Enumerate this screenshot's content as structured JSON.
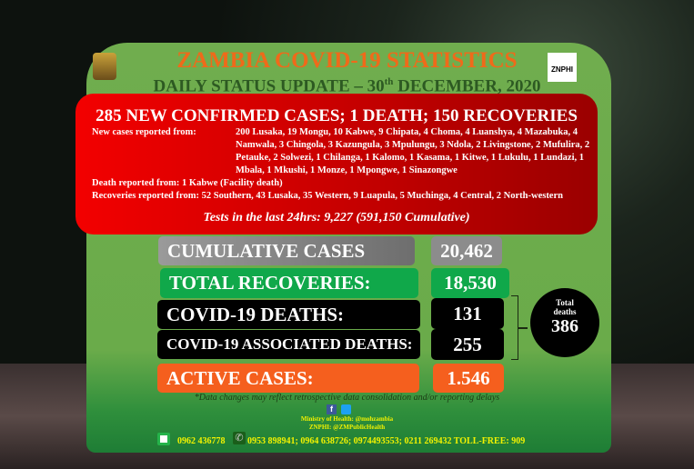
{
  "header": {
    "title": "ZAMBIA COVID-19 STATISTICS",
    "subtitle_pre": "DAILY STATUS UPDATE – 30",
    "subtitle_sup": "th",
    "subtitle_post": " DECEMBER, 2020",
    "logo_right": "ZNPHI"
  },
  "summary": {
    "headline": "285 NEW CONFIRMED CASES; 1 DEATH; 150 RECOVERIES",
    "new_cases_label": "New cases reported from:",
    "new_cases_lines": [
      "200 Lusaka, 19 Mongu, 10 Kabwe, 9 Chipata, 4 Choma, 4 Luanshya, 4 Mazabuka, 4",
      "Namwala, 3 Chingola, 3 Kazungula, 3 Mpulungu, 3 Ndola, 2 Livingstone, 2 Mufulira, 2",
      "Petauke, 2 Solwezi, 1 Chilanga, 1 Kalomo, 1 Kasama, 1 Kitwe, 1 Lukulu, 1 Lundazi, 1",
      "Mbala, 1 Mkushi, 1 Monze, 1 Mpongwe, 1 Sinazongwe"
    ],
    "death_line": "Death reported from: 1 Kabwe (Facility death)",
    "recoveries_line": "Recoveries reported from: 52 Southern, 43 Lusaka, 35 Western, 9 Luapula, 5 Muchinga, 4 Central, 2 North-western",
    "tests": "Tests in the last 24hrs: 9,227 (591,150 Cumulative)"
  },
  "stats": [
    {
      "label": "CUMULATIVE CASES",
      "value": "20,462",
      "color": "#8c8c8c"
    },
    {
      "label": "TOTAL RECOVERIES:",
      "value": "18,530",
      "color": "#10a84a"
    },
    {
      "label": "COVID-19 DEATHS:",
      "value": "131",
      "color": "#000000"
    },
    {
      "label": "COVID-19 ASSOCIATED DEATHS:",
      "value": "255",
      "color": "#000000"
    },
    {
      "label": "ACTIVE CASES:",
      "value": "1.546",
      "color": "#f55f1e"
    }
  ],
  "total_deaths": {
    "label1": "Total",
    "label2": "deaths",
    "value": "386"
  },
  "footer": {
    "note": "*Data changes may reflect retrospective data consolidation and/or reporting delays",
    "moh": "Ministry of Health: @mohzambia",
    "znphi": "ZNPHI: @ZMPublicHealth",
    "whatsapp": "0962 436778",
    "phones": "0953 898941; 0964 638726; 0974493553; 0211 269432 TOLL-FREE: 909"
  }
}
